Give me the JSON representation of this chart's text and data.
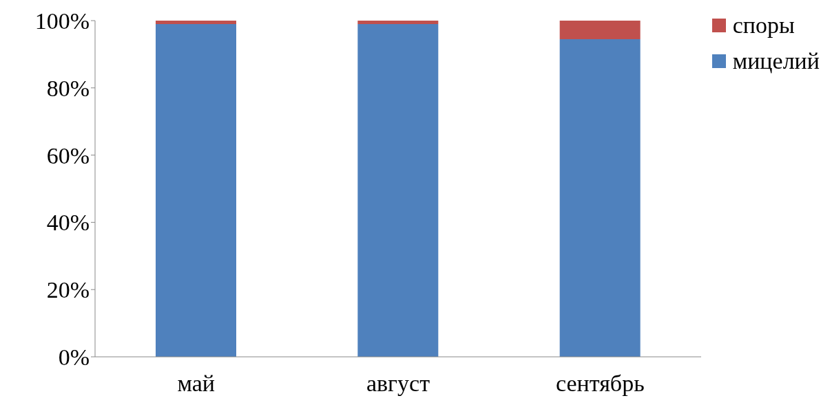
{
  "chart_data": {
    "type": "bar",
    "stacked": true,
    "categories": [
      "май",
      "август",
      "сентябрь"
    ],
    "series": [
      {
        "name": "мицелий",
        "color": "#4f81bd",
        "values": [
          99,
          99,
          94.5
        ]
      },
      {
        "name": "споры",
        "color": "#c0504d",
        "values": [
          1,
          1,
          5.5
        ]
      }
    ],
    "ylim": [
      0,
      100
    ],
    "yticks": [
      {
        "value": 0,
        "label": "0%"
      },
      {
        "value": 20,
        "label": "20%"
      },
      {
        "value": 40,
        "label": "40%"
      },
      {
        "value": 60,
        "label": "60%"
      },
      {
        "value": 80,
        "label": "80%"
      },
      {
        "value": 100,
        "label": "100%"
      }
    ],
    "legend": "top right"
  }
}
